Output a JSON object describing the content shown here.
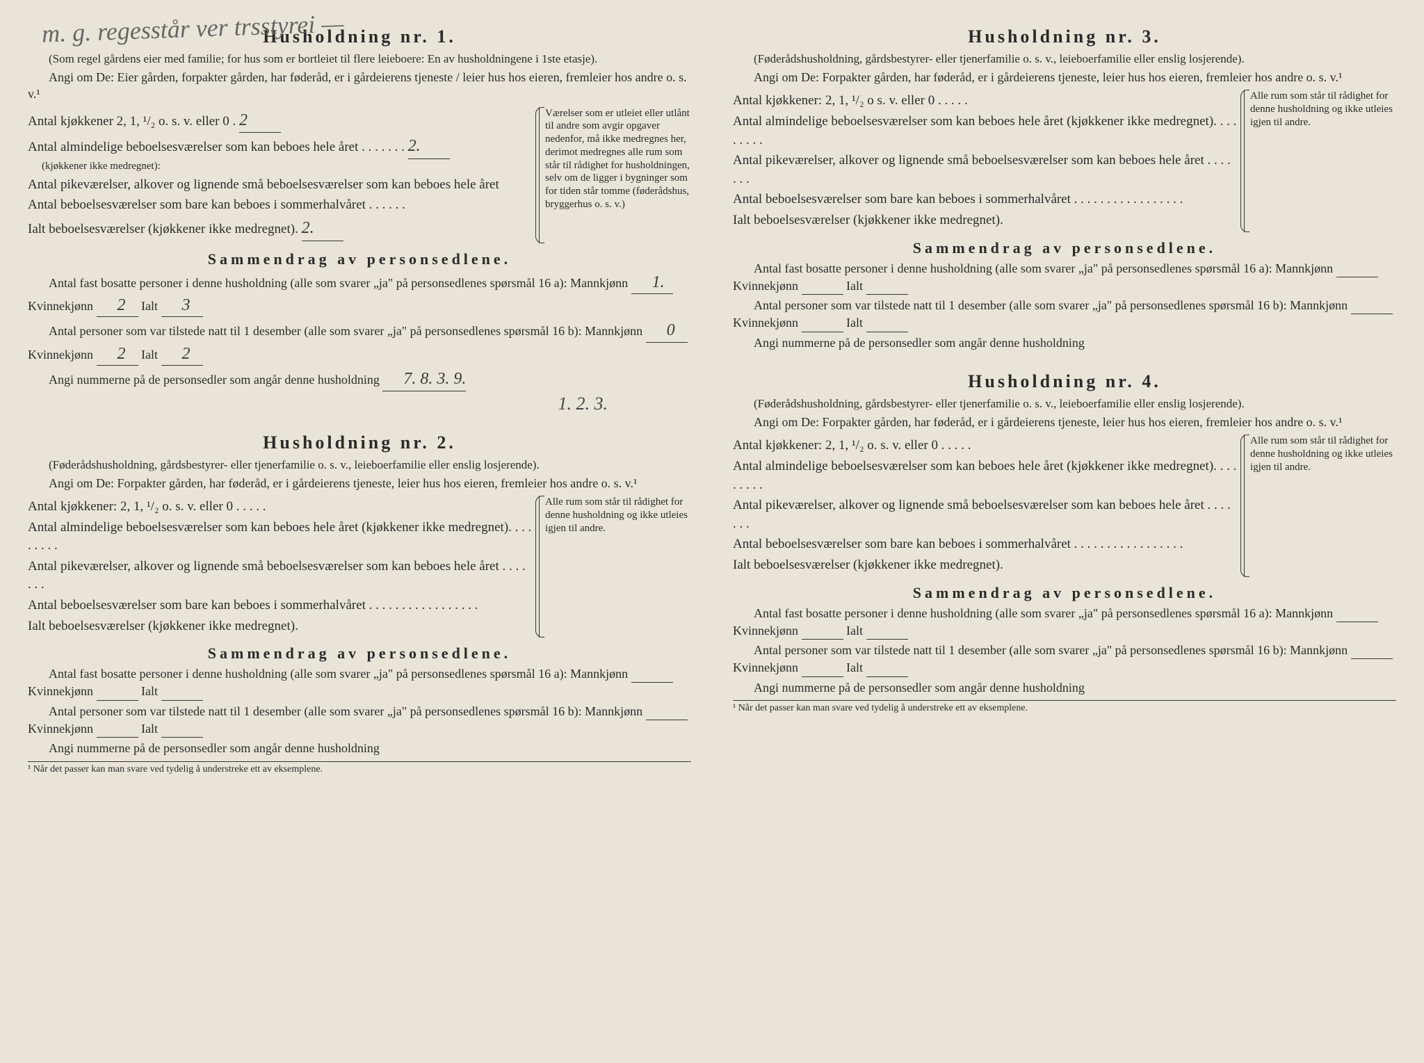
{
  "handwriting_top": "m. g. regesstår ver trsstyrei —",
  "households": [
    {
      "heading": "Husholdning nr. 1.",
      "intro": "(Som regel gårdens eier med familie; for hus som er bortleiet til flere leieboere: En av husholdningene i 1ste etasje).",
      "angi_line": "Angi om De: Eier gården, forpakter gården, har føderåd, er i gårdeierens tjeneste / leier hus hos eieren, fremleier hos andre o. s. v.¹",
      "rows": {
        "kjokkener": "Antal kjøkkener 2, 1, ¹/₂ o. s. v. eller 0  .",
        "kjokkener_val": "2",
        "almindelige": "Antal almindelige beboelsesværelser som kan beboes hele året  . . . . . . .",
        "almindelige_val": "2.",
        "almindelige_note": "(kjøkkener ikke medregnet):",
        "pike": "Antal pikeværelser, alkover og lignende små beboelsesværelser som kan beboes hele året",
        "sommer": "Antal beboelsesværelser som bare kan beboes i sommerhalvåret  . . . . . .",
        "ialt": "Ialt beboelsesværelser (kjøkkener ikke medregnet).",
        "ialt_val": "2."
      },
      "right_note": "Værelser som er utleiet eller utlånt til andre som avgir opgaver nedenfor, må ikke medregnes her, derimot medregnes alle rum som står til rådighet for husholdningen, selv om de ligger i bygninger som for tiden står tomme (føderådshus, bryggerhus o. s. v.)",
      "summary_heading": "Sammendrag av personsedlene.",
      "sum_line1": "Antal fast bosatte personer i denne husholdning (alle som svarer „ja\" på personsedlenes spørsmål 16 a): Mannkjønn",
      "sum_line1_m": "1.",
      "sum_line1_k_label": "Kvinnekjønn",
      "sum_line1_k": "2",
      "sum_line1_i_label": "Ialt",
      "sum_line1_i": "3",
      "sum_line2": "Antal personer som var tilstede natt til 1 desember (alle som svarer „ja\" på personsedlenes spørsmål 16 b): Mannkjønn",
      "sum_line2_m": "0",
      "sum_line2_k": "2",
      "sum_line2_i": "2",
      "angi_nummer": "Angi nummerne på de personsedler som angår denne husholdning",
      "angi_nummer_val": "7. 8. 3. 9.",
      "hw_below": "1. 2. 3."
    },
    {
      "heading": "Husholdning nr. 2.",
      "intro": "(Føderådshusholdning, gårdsbestyrer- eller tjenerfamilie o. s. v., leieboerfamilie eller enslig losjerende).",
      "angi_line": "Angi om De: Forpakter gården, har føderåd, er i gårdeierens tjeneste, leier hus hos eieren, fremleier hos andre o. s. v.¹",
      "rows": {
        "kjokkener": "Antal kjøkkener: 2, 1, ¹/₂ o. s. v. eller 0  . . . . .",
        "almindelige": "Antal almindelige beboelsesværelser som kan beboes hele året (kjøkkener ikke medregnet). . . . . . . . .",
        "pike": "Antal pikeværelser, alkover og lignende små beboelsesværelser som kan beboes hele året  . . . . . . .",
        "sommer": "Antal beboelsesværelser som bare kan beboes i sommerhalvåret . . . . . . . . . . . . . . . . .",
        "ialt": "Ialt beboelsesværelser (kjøkkener ikke medregnet)."
      },
      "right_note": "Alle rum som står til rådighet for denne husholdning og ikke utleies igjen til andre.",
      "summary_heading": "Sammendrag av personsedlene.",
      "sum_line1": "Antal fast bosatte personer i denne husholdning (alle som svarer „ja\" på personsedlenes spørsmål 16 a): Mannkjønn",
      "sum_line1_k_label": "Kvinnekjønn",
      "sum_line1_i_label": "Ialt",
      "sum_line2": "Antal personer som var tilstede natt til 1 desember (alle som svarer „ja\" på personsedlenes spørsmål 16 b): Mannkjønn",
      "angi_nummer": "Angi nummerne på de personsedler som angår denne husholdning",
      "footnote": "¹ Når det passer kan man svare ved tydelig å understreke ett av eksemplene."
    },
    {
      "heading": "Husholdning nr. 3.",
      "intro": "(Føderådshusholdning, gårdsbestyrer- eller tjenerfamilie o. s. v., leieboerfamilie eller enslig losjerende).",
      "angi_line": "Angi om De: Forpakter gården, har føderåd, er i gårdeierens tjeneste, leier hus hos eieren, fremleier hos andre o. s. v.¹",
      "rows": {
        "kjokkener": "Antal kjøkkener: 2, 1, ¹/₂ o s. v. eller 0  . . . . .",
        "almindelige": "Antal almindelige beboelsesværelser som kan beboes hele året (kjøkkener ikke medregnet). . . . . . . . .",
        "pike": "Antal pikeværelser, alkover og lignende små beboelsesværelser som kan beboes hele året  . . . . . . .",
        "sommer": "Antal beboelsesværelser som bare kan beboes i sommerhalvåret . . . . . . . . . . . . . . . . .",
        "ialt": "Ialt beboelsesværelser (kjøkkener ikke medregnet)."
      },
      "right_note": "Alle rum som står til rådighet for denne husholdning og ikke utleies igjen til andre.",
      "summary_heading": "Sammendrag av personsedlene.",
      "sum_line1": "Antal fast bosatte personer i denne husholdning (alle som svarer „ja\" på personsedlenes spørsmål 16 a): Mannkjønn",
      "sum_line1_k_label": "Kvinnekjønn",
      "sum_line1_i_label": "Ialt",
      "sum_line2": "Antal personer som var tilstede natt til 1 desember (alle som svarer „ja\" på personsedlenes spørsmål 16 b): Mannkjønn",
      "angi_nummer": "Angi nummerne på de personsedler som angår denne husholdning"
    },
    {
      "heading": "Husholdning nr. 4.",
      "intro": "(Føderådshusholdning, gårdsbestyrer- eller tjenerfamilie o. s. v., leieboerfamilie eller enslig losjerende).",
      "angi_line": "Angi om De: Forpakter gården, har føderåd, er i gårdeierens tjeneste, leier hus hos eieren, fremleier hos andre o. s. v.¹",
      "rows": {
        "kjokkener": "Antal kjøkkener: 2, 1, ¹/₂ o. s. v. eller 0  . . . . .",
        "almindelige": "Antal almindelige beboelsesværelser som kan beboes hele året (kjøkkener ikke medregnet). . . . . . . . .",
        "pike": "Antal pikeværelser, alkover og lignende små beboelsesværelser som kan beboes hele året  . . . . . . .",
        "sommer": "Antal beboelsesværelser som bare kan beboes i sommerhalvåret . . . . . . . . . . . . . . . . .",
        "ialt": "Ialt beboelsesværelser (kjøkkener ikke medregnet)."
      },
      "right_note": "Alle rum som står til rådighet for denne husholdning og ikke utleies igjen til andre.",
      "summary_heading": "Sammendrag av personsedlene.",
      "sum_line1": "Antal fast bosatte personer i denne husholdning (alle som svarer „ja\" på personsedlenes spørsmål 16 a): Mannkjønn",
      "sum_line1_k_label": "Kvinnekjønn",
      "sum_line1_i_label": "Ialt",
      "sum_line2": "Antal personer som var tilstede natt til 1 desember (alle som svarer „ja\" på personsedlenes spørsmål 16 b): Mannkjønn",
      "angi_nummer": "Angi nummerne på de personsedler som angår denne husholdning",
      "footnote": "¹ Når det passer kan man svare ved tydelig å understreke ett av eksemplene."
    }
  ],
  "colors": {
    "paper": "#e8e5d8",
    "ink": "#2a2a2a",
    "handwriting": "#444444"
  }
}
